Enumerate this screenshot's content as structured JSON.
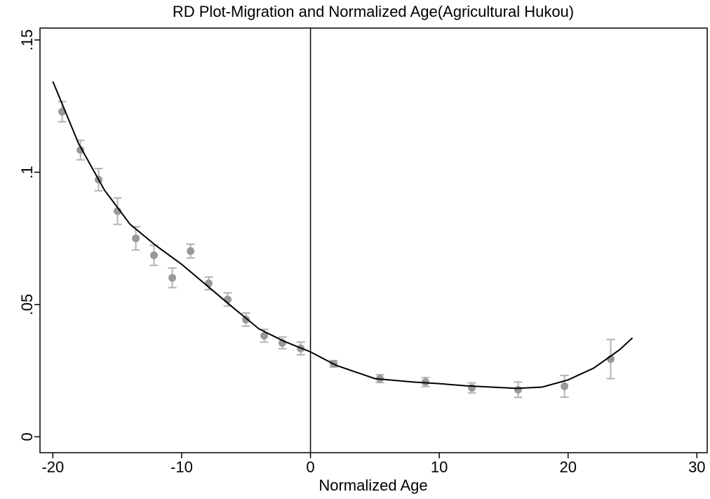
{
  "chart_data": {
    "type": "scatter",
    "title": "RD Plot-Migration and Normalized Age(Agricultural Hukou)",
    "x_label": "Normalized Age",
    "xlim": [
      -21,
      30.8
    ],
    "ylim": [
      -0.006,
      0.1545
    ],
    "xticks": [
      -20,
      -10,
      0,
      10,
      20,
      30
    ],
    "yticks": [
      0,
      {
        "value": 0.05,
        "label": ".05"
      },
      {
        "value": 0.1,
        "label": ".1"
      },
      {
        "value": 0.15,
        "label": ".15"
      }
    ],
    "xline": 0,
    "xline_color": "#000000",
    "series": [
      {
        "type": "scatter",
        "color": "#999999",
        "error_color": "#b3b3b3",
        "x": [
          -19.28,
          -17.86,
          -16.45,
          -14.98,
          -13.56,
          -12.15,
          -10.73,
          -9.31,
          -7.9,
          -6.43,
          -5.01,
          -3.59,
          -2.18,
          -0.76,
          1.8,
          5.39,
          8.93,
          12.53,
          16.12,
          19.72,
          23.31
        ],
        "values": [
          0.1229,
          0.1084,
          0.0972,
          0.0853,
          0.075,
          0.0686,
          0.0601,
          0.0702,
          0.058,
          0.0519,
          0.0443,
          0.0382,
          0.0355,
          0.0334,
          0.0276,
          0.022,
          0.0207,
          0.0185,
          0.0178,
          0.0191,
          0.0294
        ],
        "errors": [
          0.0038,
          0.0037,
          0.0042,
          0.005,
          0.0044,
          0.0038,
          0.0037,
          0.0026,
          0.0024,
          0.0025,
          0.0025,
          0.0024,
          0.0022,
          0.0024,
          0.0012,
          0.0015,
          0.0017,
          0.0019,
          0.0029,
          0.0041,
          0.0074
        ]
      },
      {
        "type": "line",
        "color": "#000000",
        "x": [
          -20,
          -18,
          -16,
          -14,
          -12,
          -10,
          -8,
          -6,
          -4,
          -2,
          0
        ],
        "values": [
          0.1343,
          0.1108,
          0.0933,
          0.0803,
          0.0723,
          0.0652,
          0.057,
          0.0488,
          0.0408,
          0.036,
          0.0321
        ]
      },
      {
        "type": "line",
        "color": "#000000",
        "x": [
          0,
          2,
          5,
          8,
          10,
          12,
          14,
          16,
          18,
          20,
          22,
          24,
          25
        ],
        "values": [
          0.0321,
          0.027,
          0.022,
          0.0207,
          0.0201,
          0.0193,
          0.0188,
          0.0183,
          0.0188,
          0.0215,
          0.026,
          0.0329,
          0.0374
        ]
      }
    ]
  }
}
